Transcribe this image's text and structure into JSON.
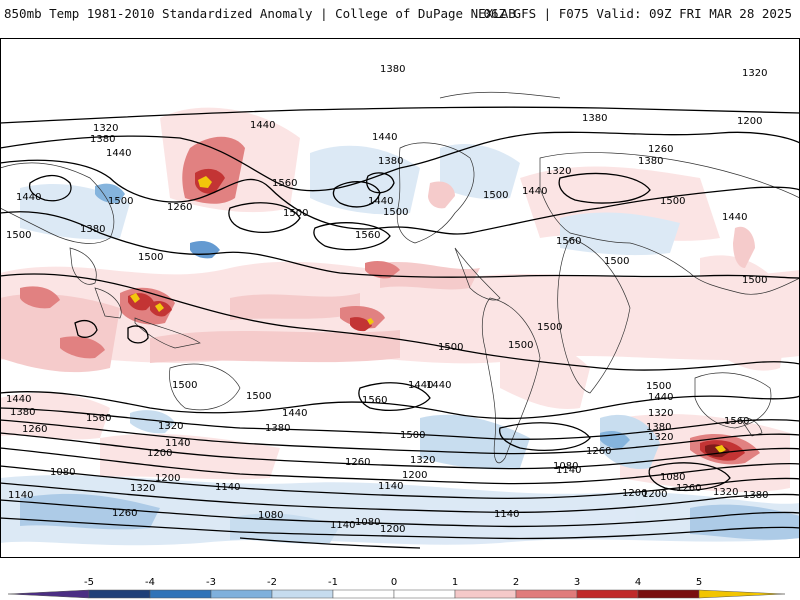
{
  "header": {
    "title_left": "850mb Temp 1981-2010 Standardized Anomaly | College of DuPage NEXLAB",
    "title_right": "06Z GFS | F075 Valid: 09Z FRI MAR 28 2025"
  },
  "colorbar": {
    "ticks": [
      "-5",
      "-4",
      "-3",
      "-2",
      "-1",
      "0",
      "1",
      "2",
      "3",
      "4",
      "5"
    ],
    "colors": [
      "#4b2e83",
      "#1f3f78",
      "#2f73b8",
      "#7fb0dc",
      "#c6dcef",
      "#ffffff",
      "#ffffff",
      "#f5c9c9",
      "#e07b7b",
      "#c02a2a",
      "#7a0f0f",
      "#f2c500"
    ]
  },
  "contour_labels": [
    {
      "id": "1380-top",
      "text": "1380"
    },
    {
      "id": "1320-ne",
      "text": "1320"
    },
    {
      "id": "1320-w",
      "text": "1320"
    },
    {
      "id": "1380-w",
      "text": "1380"
    },
    {
      "id": "1440-w",
      "text": "1440"
    },
    {
      "id": "1440-nw",
      "text": "1440"
    },
    {
      "id": "1500-w1",
      "text": "1500"
    },
    {
      "id": "1380-asia",
      "text": "1380"
    },
    {
      "id": "1500-w2",
      "text": "1500"
    },
    {
      "id": "1440-kam",
      "text": "1440"
    },
    {
      "id": "1560-pac",
      "text": "1560"
    },
    {
      "id": "1260-pac",
      "text": "1260"
    },
    {
      "id": "1500-pac",
      "text": "1500"
    },
    {
      "id": "1500-trop",
      "text": "1500"
    },
    {
      "id": "1440-ak",
      "text": "1440"
    },
    {
      "id": "1380-ak",
      "text": "1380"
    },
    {
      "id": "1440-can",
      "text": "1440"
    },
    {
      "id": "1500-can",
      "text": "1500"
    },
    {
      "id": "1560-np",
      "text": "1560"
    },
    {
      "id": "1500-us",
      "text": "1500"
    },
    {
      "id": "1440-atl",
      "text": "1440"
    },
    {
      "id": "1320-atl",
      "text": "1320"
    },
    {
      "id": "1380-eu",
      "text": "1380"
    },
    {
      "id": "1260-eu",
      "text": "1260"
    },
    {
      "id": "1200-ru",
      "text": "1200"
    },
    {
      "id": "1500-eu",
      "text": "1500"
    },
    {
      "id": "1440-me",
      "text": "1440"
    },
    {
      "id": "1560-atl",
      "text": "1560"
    },
    {
      "id": "1500-afr",
      "text": "1500"
    },
    {
      "id": "1500-ind",
      "text": "1500"
    },
    {
      "id": "1500-sam",
      "text": "1500"
    },
    {
      "id": "1500-sat",
      "text": "1500"
    },
    {
      "id": "1500-spac",
      "text": "1500"
    },
    {
      "id": "1440-sam",
      "text": "1440"
    },
    {
      "id": "1500-sw1",
      "text": "1500"
    },
    {
      "id": "1440-sw",
      "text": "1440"
    },
    {
      "id": "1380-sw",
      "text": "1380"
    },
    {
      "id": "1260-sw",
      "text": "1260"
    },
    {
      "id": "1200-sw",
      "text": "1200"
    },
    {
      "id": "1560-sw",
      "text": "1560"
    },
    {
      "id": "1500-spc",
      "text": "1500"
    },
    {
      "id": "1440-spc",
      "text": "1440"
    },
    {
      "id": "1320-spc",
      "text": "1320"
    },
    {
      "id": "1140-spc",
      "text": "1140"
    },
    {
      "id": "1380-spc",
      "text": "1380"
    },
    {
      "id": "1560-spc2",
      "text": "1560"
    },
    {
      "id": "1440-spc2",
      "text": "1440"
    },
    {
      "id": "1500-ssa",
      "text": "1500"
    },
    {
      "id": "1320-ssa",
      "text": "1320"
    },
    {
      "id": "1260-ssa",
      "text": "1260"
    },
    {
      "id": "1200-ssa",
      "text": "1200"
    },
    {
      "id": "1140-ssa",
      "text": "1140"
    },
    {
      "id": "1200-sw2",
      "text": "1200"
    },
    {
      "id": "1080-sw",
      "text": "1080"
    },
    {
      "id": "1140-sw",
      "text": "1140"
    },
    {
      "id": "1320-sw2",
      "text": "1320"
    },
    {
      "id": "1260-sw2",
      "text": "1260"
    },
    {
      "id": "1140-sw2",
      "text": "1140"
    },
    {
      "id": "1080-sp",
      "text": "1080"
    },
    {
      "id": "1140-sp",
      "text": "1140"
    },
    {
      "id": "1080-sp2",
      "text": "1080"
    },
    {
      "id": "1200-sp",
      "text": "1200"
    },
    {
      "id": "1080-sind",
      "text": "1080"
    },
    {
      "id": "1140-sind",
      "text": "1140"
    },
    {
      "id": "1500-ind2",
      "text": "1500"
    },
    {
      "id": "1440-ind2",
      "text": "1440"
    },
    {
      "id": "1320-ind2",
      "text": "1320"
    },
    {
      "id": "1560-aus",
      "text": "1560"
    },
    {
      "id": "1260-aus",
      "text": "1260"
    },
    {
      "id": "1080-aus",
      "text": "1080"
    },
    {
      "id": "1200-aus",
      "text": "1200"
    },
    {
      "id": "1320-aus",
      "text": "1320"
    },
    {
      "id": "1380-aus",
      "text": "1380"
    },
    {
      "id": "1260-ind",
      "text": "1260"
    },
    {
      "id": "1140-se",
      "text": "1140"
    },
    {
      "id": "1200-se",
      "text": "1200"
    },
    {
      "id": "1320-pac2",
      "text": "1320"
    },
    {
      "id": "1380-pac3",
      "text": "1380"
    },
    {
      "id": "1380-eu2",
      "text": "1380"
    }
  ]
}
